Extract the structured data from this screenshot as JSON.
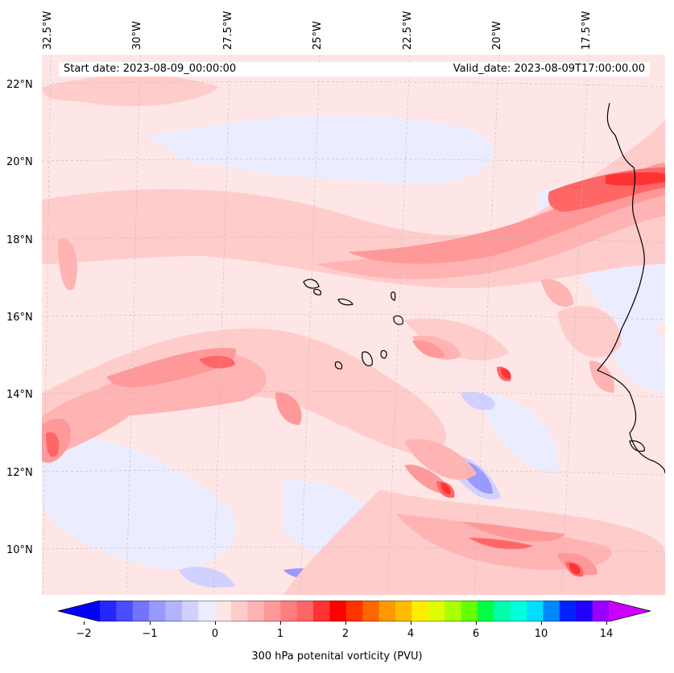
{
  "header": {
    "start_date": "Start date: 2023-08-09_00:00:00",
    "valid_date": "Valid_date: 2023-08-09T17:00:00.00"
  },
  "longitude_labels": [
    "32.5°W",
    "30°W",
    "27.5°W",
    "25°W",
    "22.5°W",
    "20°W",
    "17.5°W"
  ],
  "latitude_labels": [
    "22°N",
    "20°N",
    "18°N",
    "16°N",
    "14°N",
    "12°N",
    "10°N"
  ],
  "colorbar": {
    "label": "300 hPa potenital vorticity (PVU)",
    "tick_labels": [
      "−2",
      "−1",
      "0",
      "1",
      "2",
      "4",
      "6",
      "10",
      "14"
    ],
    "colors": [
      "#0000ff",
      "#2626ff",
      "#4c4cff",
      "#7373ff",
      "#9999ff",
      "#b3b3ff",
      "#d1d1ff",
      "#ececff",
      "#ffe6e6",
      "#ffcccc",
      "#ffb3b3",
      "#ff9999",
      "#ff7f7f",
      "#ff6666",
      "#ff3333",
      "#ff0000",
      "#ff3300",
      "#ff6600",
      "#ff9900",
      "#ffbb00",
      "#ffee00",
      "#ddff00",
      "#aaff00",
      "#66ff00",
      "#00ff44",
      "#00ffaa",
      "#00ffdd",
      "#00ddff",
      "#0088ff",
      "#0022ff",
      "#2200ff",
      "#9900ff",
      "#cc00ff"
    ]
  },
  "map": {
    "background_color": "#ffe6e6",
    "coastline_color": "#000000"
  }
}
